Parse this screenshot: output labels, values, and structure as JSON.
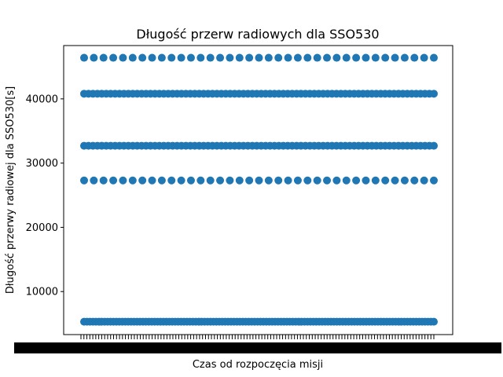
{
  "chart_data": {
    "type": "scatter",
    "title": "Długość przerw radiowych dla SSO530",
    "xlabel": "Czas od rozpoczęcia misji",
    "ylabel": "Długość przerwy radiowej dla SSO530[s]",
    "y_ticks": [
      10000,
      20000,
      30000,
      40000
    ],
    "ylim": [
      3300,
      48300
    ],
    "x_tick_labels": "illegible (dense overlapping labels)",
    "grid": false,
    "legend": "none",
    "point_color": "#1f77b4",
    "series": [
      {
        "bands": [
          {
            "y": 46400,
            "points": 37
          },
          {
            "y": 40800,
            "points": 80
          },
          {
            "y": 32700,
            "points": 80
          },
          {
            "y": 27300,
            "points": 37
          },
          {
            "y": 5300,
            "points": 120
          }
        ]
      }
    ]
  }
}
